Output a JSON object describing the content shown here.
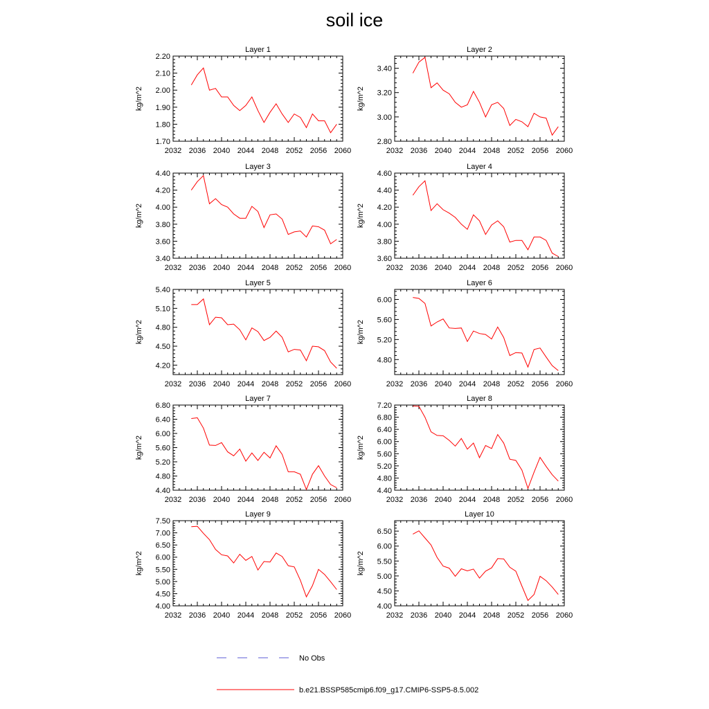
{
  "title": "soil ice",
  "legend": {
    "entries": [
      {
        "label": "No Obs",
        "color": "#5b5bd6",
        "style": "dashed"
      },
      {
        "label": "b.e21.BSSP585cmip6.f09_g17.CMIP6-SSP5-8.5.002",
        "color": "#ff0000",
        "style": "solid"
      }
    ]
  },
  "chart_data": [
    {
      "type": "line",
      "title": "Layer 1",
      "ylabel": "kg/m^2",
      "xlim": [
        2032,
        2060
      ],
      "xticks": [
        "2032",
        "2036",
        "2040",
        "2044",
        "2048",
        "2052",
        "2056",
        "2060"
      ],
      "ylim": [
        1.7,
        2.2
      ],
      "yticks": [
        "1.70",
        "1.80",
        "1.90",
        "2.00",
        "2.10",
        "2.20"
      ],
      "series": [
        {
          "color": "#ff0000",
          "x": [
            2035,
            2036,
            2037,
            2038,
            2039,
            2040,
            2041,
            2042,
            2043,
            2044,
            2045,
            2046,
            2047,
            2048,
            2049,
            2050,
            2051,
            2052,
            2053,
            2054,
            2055,
            2056,
            2057,
            2058,
            2059
          ],
          "values": [
            2.03,
            2.09,
            2.13,
            2.0,
            2.01,
            1.96,
            1.96,
            1.91,
            1.88,
            1.91,
            1.96,
            1.88,
            1.81,
            1.87,
            1.92,
            1.86,
            1.81,
            1.86,
            1.84,
            1.78,
            1.86,
            1.82,
            1.82,
            1.75,
            1.8
          ]
        }
      ]
    },
    {
      "type": "line",
      "title": "Layer 2",
      "ylabel": "kg/m^2",
      "xlim": [
        2032,
        2060
      ],
      "xticks": [
        "2032",
        "2036",
        "2040",
        "2044",
        "2048",
        "2052",
        "2056",
        "2060"
      ],
      "ylim": [
        2.8,
        3.5
      ],
      "yticks": [
        "2.80",
        "3.00",
        "3.20",
        "3.40"
      ],
      "series": [
        {
          "color": "#ff0000",
          "x": [
            2035,
            2036,
            2037,
            2038,
            2039,
            2040,
            2041,
            2042,
            2043,
            2044,
            2045,
            2046,
            2047,
            2048,
            2049,
            2050,
            2051,
            2052,
            2053,
            2054,
            2055,
            2056,
            2057,
            2058,
            2059
          ],
          "values": [
            3.36,
            3.45,
            3.49,
            3.24,
            3.28,
            3.22,
            3.19,
            3.12,
            3.08,
            3.1,
            3.21,
            3.12,
            3.0,
            3.1,
            3.12,
            3.07,
            2.93,
            2.98,
            2.96,
            2.92,
            3.03,
            3.0,
            2.99,
            2.85,
            2.92
          ]
        }
      ]
    },
    {
      "type": "line",
      "title": "Layer 3",
      "ylabel": "kg/m^2",
      "xlim": [
        2032,
        2060
      ],
      "xticks": [
        "2032",
        "2036",
        "2040",
        "2044",
        "2048",
        "2052",
        "2056",
        "2060"
      ],
      "ylim": [
        3.4,
        4.4
      ],
      "yticks": [
        "3.40",
        "3.60",
        "3.80",
        "4.00",
        "4.20",
        "4.40"
      ],
      "series": [
        {
          "color": "#ff0000",
          "x": [
            2035,
            2036,
            2037,
            2038,
            2039,
            2040,
            2041,
            2042,
            2043,
            2044,
            2045,
            2046,
            2047,
            2048,
            2049,
            2050,
            2051,
            2052,
            2053,
            2054,
            2055,
            2056,
            2057,
            2058,
            2059
          ],
          "values": [
            4.2,
            4.3,
            4.37,
            4.04,
            4.1,
            4.03,
            4.0,
            3.92,
            3.87,
            3.87,
            4.01,
            3.95,
            3.76,
            3.91,
            3.92,
            3.86,
            3.68,
            3.71,
            3.72,
            3.65,
            3.78,
            3.77,
            3.73,
            3.57,
            3.62
          ]
        }
      ]
    },
    {
      "type": "line",
      "title": "Layer 4",
      "ylabel": "kg/m^2",
      "xlim": [
        2032,
        2060
      ],
      "xticks": [
        "2032",
        "2036",
        "2040",
        "2044",
        "2048",
        "2052",
        "2056",
        "2060"
      ],
      "ylim": [
        3.6,
        4.6
      ],
      "yticks": [
        "3.60",
        "3.80",
        "4.00",
        "4.20",
        "4.40",
        "4.60"
      ],
      "series": [
        {
          "color": "#ff0000",
          "x": [
            2035,
            2036,
            2037,
            2038,
            2039,
            2040,
            2041,
            2042,
            2043,
            2044,
            2045,
            2046,
            2047,
            2048,
            2049,
            2050,
            2051,
            2052,
            2053,
            2054,
            2055,
            2056,
            2057,
            2058,
            2059
          ],
          "values": [
            4.34,
            4.44,
            4.51,
            4.16,
            4.24,
            4.17,
            4.13,
            4.08,
            4.0,
            3.94,
            4.11,
            4.04,
            3.88,
            3.99,
            4.04,
            3.97,
            3.79,
            3.81,
            3.81,
            3.7,
            3.85,
            3.85,
            3.81,
            3.66,
            3.62
          ]
        }
      ]
    },
    {
      "type": "line",
      "title": "Layer 5",
      "ylabel": "kg/m^2",
      "xlim": [
        2032,
        2060
      ],
      "xticks": [
        "2032",
        "2036",
        "2040",
        "2044",
        "2048",
        "2052",
        "2056",
        "2060"
      ],
      "ylim": [
        4.05,
        5.4
      ],
      "yticks": [
        "4.20",
        "4.50",
        "4.80",
        "5.10",
        "5.40"
      ],
      "series": [
        {
          "color": "#ff0000",
          "x": [
            2035,
            2036,
            2037,
            2038,
            2039,
            2040,
            2041,
            2042,
            2043,
            2044,
            2045,
            2046,
            2047,
            2048,
            2049,
            2050,
            2051,
            2052,
            2053,
            2054,
            2055,
            2056,
            2057,
            2058,
            2059
          ],
          "values": [
            5.16,
            5.16,
            5.25,
            4.84,
            4.96,
            4.95,
            4.84,
            4.85,
            4.76,
            4.6,
            4.79,
            4.73,
            4.59,
            4.64,
            4.74,
            4.64,
            4.41,
            4.45,
            4.44,
            4.27,
            4.5,
            4.49,
            4.43,
            4.25,
            4.15
          ]
        }
      ]
    },
    {
      "type": "line",
      "title": "Layer 6",
      "ylabel": "kg/m^2",
      "xlim": [
        2032,
        2060
      ],
      "xticks": [
        "2032",
        "2036",
        "2040",
        "2044",
        "2048",
        "2052",
        "2056",
        "2060"
      ],
      "ylim": [
        4.5,
        6.2
      ],
      "yticks": [
        "4.80",
        "5.20",
        "5.60",
        "6.00"
      ],
      "series": [
        {
          "color": "#ff0000",
          "x": [
            2035,
            2036,
            2037,
            2038,
            2039,
            2040,
            2041,
            2042,
            2043,
            2044,
            2045,
            2046,
            2047,
            2048,
            2049,
            2050,
            2051,
            2052,
            2053,
            2054,
            2055,
            2056,
            2057,
            2058,
            2059
          ],
          "values": [
            6.04,
            6.02,
            5.92,
            5.47,
            5.55,
            5.61,
            5.43,
            5.42,
            5.43,
            5.16,
            5.37,
            5.32,
            5.3,
            5.21,
            5.45,
            5.24,
            4.88,
            4.94,
            4.93,
            4.65,
            5.0,
            5.03,
            4.85,
            4.68,
            4.58
          ]
        }
      ]
    },
    {
      "type": "line",
      "title": "Layer 7",
      "ylabel": "kg/m^2",
      "xlim": [
        2032,
        2060
      ],
      "xticks": [
        "2032",
        "2036",
        "2040",
        "2044",
        "2048",
        "2052",
        "2056",
        "2060"
      ],
      "ylim": [
        4.4,
        6.8
      ],
      "yticks": [
        "4.40",
        "4.80",
        "5.20",
        "5.60",
        "6.00",
        "6.40",
        "6.80"
      ],
      "series": [
        {
          "color": "#ff0000",
          "x": [
            2035,
            2036,
            2037,
            2038,
            2039,
            2040,
            2041,
            2042,
            2043,
            2044,
            2045,
            2046,
            2047,
            2048,
            2049,
            2050,
            2051,
            2052,
            2053,
            2054,
            2055,
            2056,
            2057,
            2058,
            2059
          ],
          "values": [
            6.42,
            6.44,
            6.15,
            5.67,
            5.66,
            5.74,
            5.48,
            5.37,
            5.56,
            5.22,
            5.45,
            5.24,
            5.47,
            5.31,
            5.65,
            5.41,
            4.92,
            4.92,
            4.85,
            4.42,
            4.85,
            5.09,
            4.8,
            4.56,
            4.47
          ]
        }
      ]
    },
    {
      "type": "line",
      "title": "Layer 8",
      "ylabel": "kg/m^2",
      "xlim": [
        2032,
        2060
      ],
      "xticks": [
        "2032",
        "2036",
        "2040",
        "2044",
        "2048",
        "2052",
        "2056",
        "2060"
      ],
      "ylim": [
        4.4,
        7.2
      ],
      "yticks": [
        "4.40",
        "4.80",
        "5.20",
        "5.60",
        "6.00",
        "6.40",
        "6.80",
        "7.20"
      ],
      "series": [
        {
          "color": "#ff0000",
          "x": [
            2035,
            2036,
            2037,
            2038,
            2039,
            2040,
            2041,
            2042,
            2043,
            2044,
            2045,
            2046,
            2047,
            2048,
            2049,
            2050,
            2051,
            2052,
            2053,
            2054,
            2055,
            2056,
            2057,
            2058,
            2059
          ],
          "values": [
            7.17,
            7.16,
            6.8,
            6.32,
            6.2,
            6.19,
            6.04,
            5.85,
            6.1,
            5.75,
            5.95,
            5.47,
            5.87,
            5.77,
            6.23,
            5.95,
            5.42,
            5.38,
            5.06,
            4.46,
            4.99,
            5.48,
            5.18,
            4.91,
            4.7
          ]
        }
      ]
    },
    {
      "type": "line",
      "title": "Layer 9",
      "ylabel": "kg/m^2",
      "xlim": [
        2032,
        2060
      ],
      "xticks": [
        "2032",
        "2036",
        "2040",
        "2044",
        "2048",
        "2052",
        "2056",
        "2060"
      ],
      "ylim": [
        4.0,
        7.5
      ],
      "yticks": [
        "4.00",
        "4.50",
        "5.00",
        "5.50",
        "6.00",
        "6.50",
        "7.00",
        "7.50"
      ],
      "series": [
        {
          "color": "#ff0000",
          "x": [
            2035,
            2036,
            2037,
            2038,
            2039,
            2040,
            2041,
            2042,
            2043,
            2044,
            2045,
            2046,
            2047,
            2048,
            2049,
            2050,
            2051,
            2052,
            2053,
            2054,
            2055,
            2056,
            2057,
            2058,
            2059
          ],
          "values": [
            7.25,
            7.27,
            6.98,
            6.72,
            6.32,
            6.1,
            6.05,
            5.76,
            6.12,
            5.87,
            6.03,
            5.47,
            5.82,
            5.8,
            6.17,
            6.03,
            5.65,
            5.6,
            5.05,
            4.37,
            4.83,
            5.5,
            5.29,
            4.99,
            4.67
          ]
        }
      ]
    },
    {
      "type": "line",
      "title": "Layer 10",
      "ylabel": "kg/m^2",
      "xlim": [
        2032,
        2060
      ],
      "xticks": [
        "2032",
        "2036",
        "2040",
        "2044",
        "2048",
        "2052",
        "2056",
        "2060"
      ],
      "ylim": [
        4.0,
        6.85
      ],
      "yticks": [
        "4.00",
        "4.50",
        "5.00",
        "5.50",
        "6.00",
        "6.50"
      ],
      "series": [
        {
          "color": "#ff0000",
          "x": [
            2035,
            2036,
            2037,
            2038,
            2039,
            2040,
            2041,
            2042,
            2043,
            2044,
            2045,
            2046,
            2047,
            2048,
            2049,
            2050,
            2051,
            2052,
            2053,
            2054,
            2055,
            2056,
            2057,
            2058,
            2059
          ],
          "values": [
            6.4,
            6.51,
            6.27,
            6.04,
            5.62,
            5.33,
            5.26,
            4.99,
            5.24,
            5.17,
            5.23,
            4.93,
            5.16,
            5.27,
            5.58,
            5.57,
            5.29,
            5.16,
            4.66,
            4.18,
            4.38,
            4.99,
            4.84,
            4.63,
            4.38
          ]
        }
      ]
    }
  ]
}
